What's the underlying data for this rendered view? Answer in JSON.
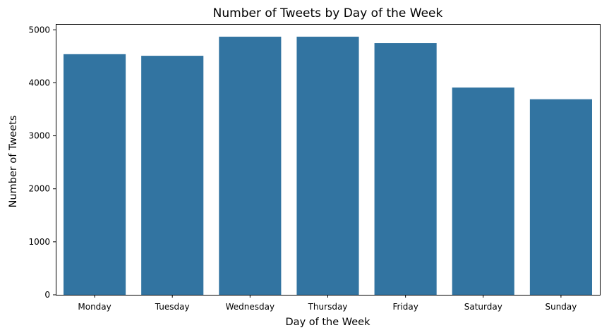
{
  "chart_data": {
    "type": "bar",
    "title": "Number of Tweets by Day of the Week",
    "xlabel": "Day of the Week",
    "ylabel": "Number of Tweets",
    "categories": [
      "Monday",
      "Tuesday",
      "Wednesday",
      "Thursday",
      "Friday",
      "Saturday",
      "Sunday"
    ],
    "values": [
      4540,
      4510,
      4870,
      4870,
      4750,
      3910,
      3690
    ],
    "yticks": [
      0,
      1000,
      2000,
      3000,
      4000,
      5000
    ],
    "ylim": [
      0,
      5110
    ],
    "bar_color": "#3274a1",
    "grid": false,
    "legend": "none"
  }
}
